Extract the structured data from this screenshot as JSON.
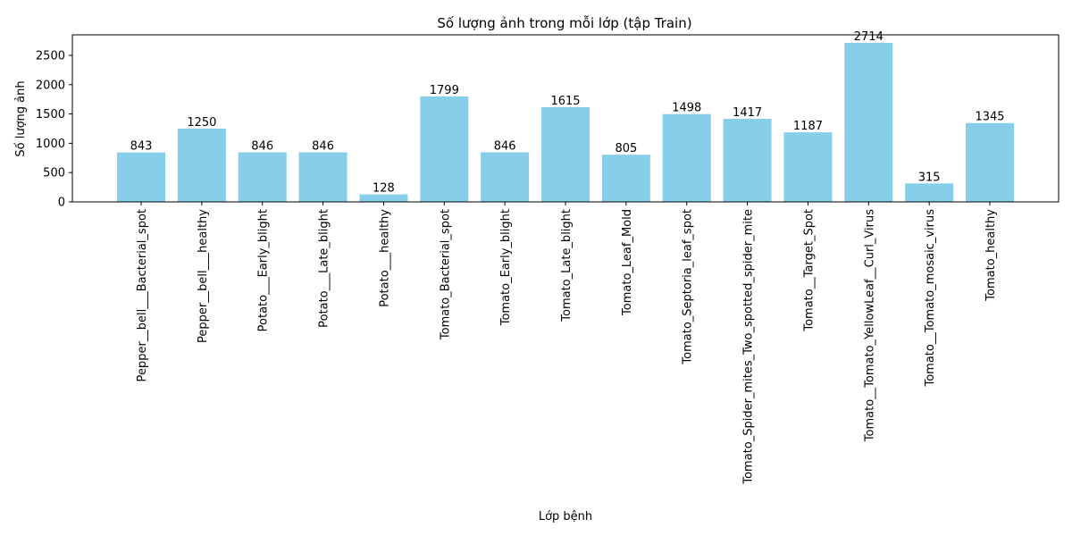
{
  "chart_data": {
    "type": "bar",
    "title": "Số lượng ảnh trong mỗi lớp (tập Train)",
    "xlabel": "Lớp bệnh",
    "ylabel": "Số lượng ảnh",
    "ylim": [
      0,
      2850
    ],
    "yticks": [
      0,
      500,
      1000,
      1500,
      2000,
      2500
    ],
    "grid": false,
    "bar_color": "#87CEEB",
    "categories": [
      "Pepper__bell___Bacterial_spot",
      "Pepper__bell___healthy",
      "Potato___Early_blight",
      "Potato___Late_blight",
      "Potato___healthy",
      "Tomato_Bacterial_spot",
      "Tomato_Early_blight",
      "Tomato_Late_blight",
      "Tomato_Leaf_Mold",
      "Tomato_Septoria_leaf_spot",
      "Tomato_Spider_mites_Two_spotted_spider_mite",
      "Tomato__Target_Spot",
      "Tomato__Tomato_YellowLeaf__Curl_Virus",
      "Tomato__Tomato_mosaic_virus",
      "Tomato_healthy"
    ],
    "values": [
      843,
      1250,
      846,
      846,
      128,
      1799,
      846,
      1615,
      805,
      1498,
      1417,
      1187,
      2714,
      315,
      1345
    ]
  }
}
